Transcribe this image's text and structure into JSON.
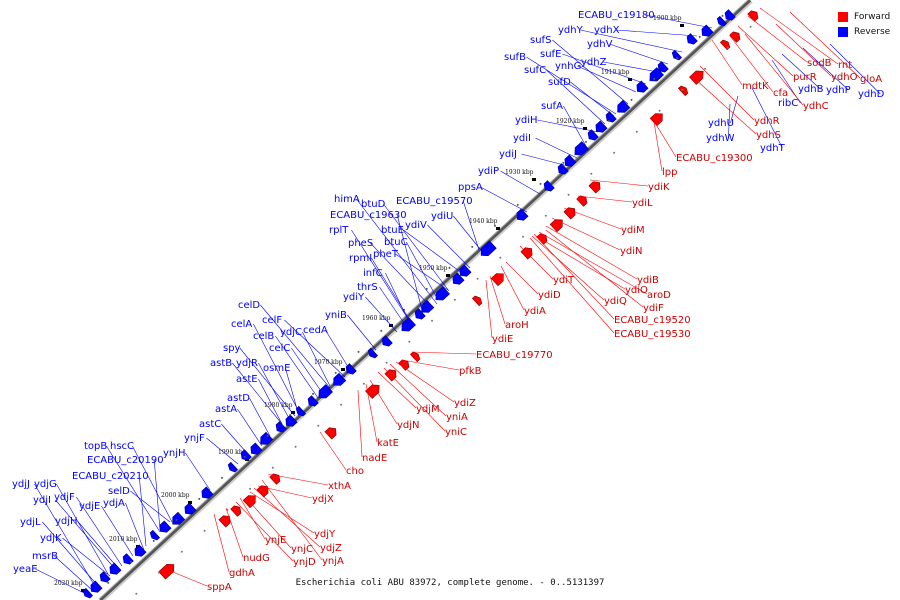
{
  "legend": {
    "forward": {
      "label": "Forward",
      "color": "#ff0000"
    },
    "reverse": {
      "label": "Reverse",
      "color": "#0000ff"
    }
  },
  "caption": "Escherichia coli ABU 83972, complete genome. - 0..5131397",
  "ticks": [
    "1900 kbp",
    "1910 kbp",
    "1920 kbp",
    "1930 kbp",
    "1940 kbp",
    "1950 kbp",
    "1960 kbp",
    "1970 kbp",
    "1980 kbp",
    "1990 kbp",
    "2000 kbp",
    "2010 kbp",
    "2020 kbp"
  ],
  "reverse_genes": [
    "ECABU_c19180",
    "ydhY",
    "ydhX",
    "sufS",
    "ydhV",
    "sufE",
    "sufB",
    "ynhG",
    "ydhZ",
    "sufC",
    "sufD",
    "sufA",
    "ydiH",
    "ydiI",
    "ydiJ",
    "ydiP",
    "ppsA",
    "himA",
    "btuD",
    "ECABU_c19570",
    "ECABU_c19630",
    "ydiU",
    "rplT",
    "btuE",
    "ydiV",
    "pheS",
    "btuC",
    "rpmI",
    "pheT",
    "infC",
    "thrS",
    "ydiY",
    "yniB",
    "celD",
    "celF",
    "celA",
    "ydjC",
    "cedA",
    "celB",
    "celC",
    "spy",
    "ydjR",
    "astB",
    "osmE",
    "astE",
    "astD",
    "astA",
    "astC",
    "ynjF",
    "topB",
    "hscC",
    "ECABU_c20190",
    "ynjH",
    "ECABU_c20210",
    "selD",
    "ydjJ",
    "ydjG",
    "ydjI",
    "ydjF",
    "ydjE",
    "ydjA",
    "ydjL",
    "ydjH",
    "ydjK",
    "msrB",
    "yeaE",
    "ydhW",
    "ydhU",
    "ydhT",
    "ribC",
    "ydhB",
    "ydhP",
    "ydhD"
  ],
  "forward_genes": [
    "rnt",
    "sodB",
    "gloA",
    "purR",
    "ydhO",
    "mdtK",
    "cfa",
    "ydhC",
    "ydhR",
    "ydhS",
    "ECABU_c19300",
    "lpp",
    "ydiK",
    "ydiL",
    "ydiM",
    "ydiN",
    "ydiB",
    "ydiT",
    "aroD",
    "ydiO",
    "ydiD",
    "ydiF",
    "ydiQ",
    "ECABU_c19520",
    "ECABU_c19530",
    "ydiA",
    "aroH",
    "ydiE",
    "ECABU_c19770",
    "pfkB",
    "ydiZ",
    "ydjM",
    "yniA",
    "ydjN",
    "yniC",
    "katE",
    "nadE",
    "cho",
    "xthA",
    "ydjX",
    "ydjY",
    "ynjE",
    "ydjZ",
    "ynjC",
    "nudG",
    "ynjA",
    "ynjD",
    "gdhA",
    "sppA"
  ]
}
